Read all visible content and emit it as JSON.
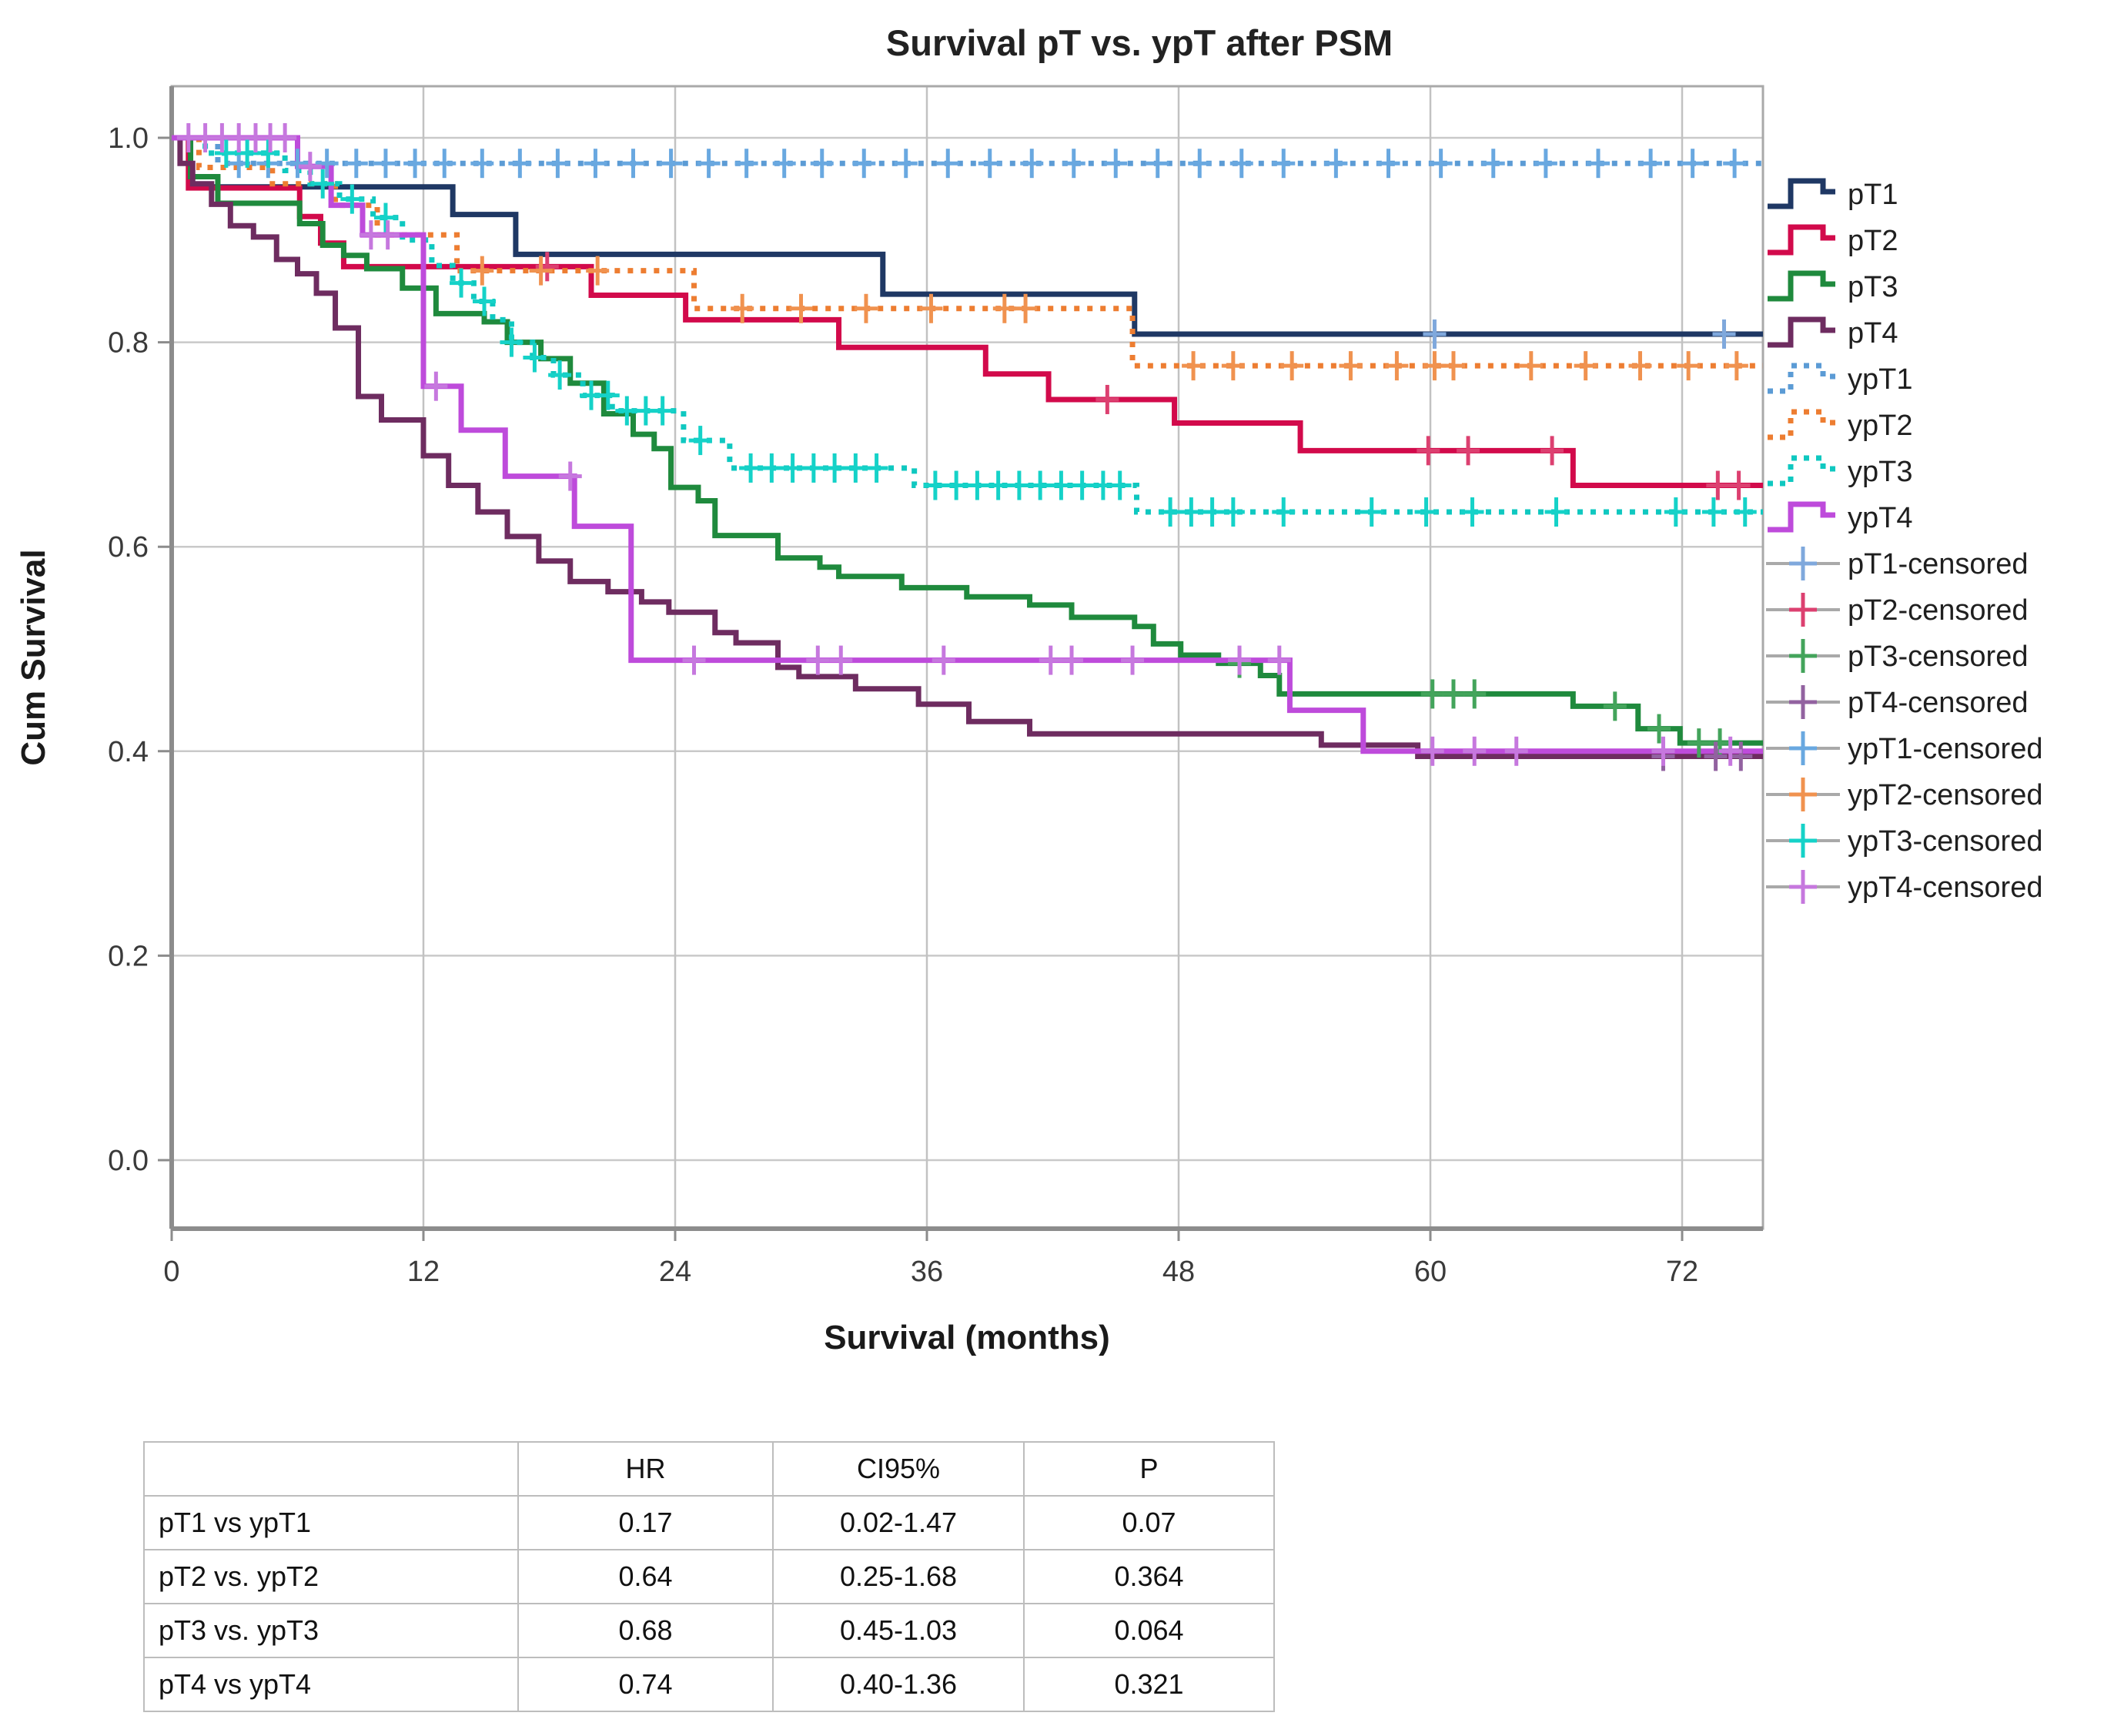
{
  "title": "Survival pT vs. ypT after PSM",
  "axes": {
    "y_label": "Cum Survival",
    "x_label": "Survival (months)",
    "y_tick_labels": [
      "1.0",
      "0.8",
      "0.6",
      "0.4",
      "0.2",
      "0.0"
    ],
    "x_tick_labels": [
      "0",
      "12",
      "24",
      "36",
      "48",
      "60",
      "72"
    ]
  },
  "chart_data": {
    "type": "line",
    "subtype": "kaplan-meier-step",
    "title": "Survival pT vs. ypT after PSM",
    "xlabel": "Survival (months)",
    "ylabel": "Cum Survival",
    "xlim": [
      0,
      75.8
    ],
    "ylim": [
      0.0,
      1.0
    ],
    "x_ticks": [
      0,
      12,
      24,
      36,
      48,
      60,
      72
    ],
    "y_ticks": [
      1.0,
      0.8,
      0.6,
      0.4,
      0.2,
      0.0
    ],
    "grid": true,
    "legend_position": "right",
    "series": [
      {
        "name": "pT1",
        "color": "#1F3864",
        "censor_color": "#7FA8DC",
        "style": "solid",
        "steps": [
          [
            0,
            1.0
          ],
          [
            0.9,
            0.952
          ],
          [
            13.4,
            0.925
          ],
          [
            16.4,
            0.886
          ],
          [
            33.9,
            0.847
          ],
          [
            45.9,
            0.808
          ]
        ],
        "censors": [
          60.2,
          74
        ]
      },
      {
        "name": "pT2",
        "color": "#D20A4B",
        "censor_color": "#DC4070",
        "style": "solid",
        "steps": [
          [
            0,
            1.0
          ],
          [
            0.8,
            0.951
          ],
          [
            6.1,
            0.923
          ],
          [
            7.1,
            0.897
          ],
          [
            8.2,
            0.874
          ],
          [
            17.9,
            0.874
          ],
          [
            20,
            0.846
          ],
          [
            24.5,
            0.822
          ],
          [
            31.8,
            0.795
          ],
          [
            38.8,
            0.769
          ],
          [
            41.8,
            0.744
          ],
          [
            47.8,
            0.721
          ],
          [
            53.8,
            0.694
          ],
          [
            66.8,
            0.66
          ]
        ],
        "censors": [
          17.9,
          44.6,
          59.9,
          61.8,
          65.8,
          73.7,
          74.7
        ]
      },
      {
        "name": "pT3",
        "color": "#1F8A3D",
        "censor_color": "#43A45B",
        "style": "solid",
        "steps": [
          [
            0,
            1.0
          ],
          [
            0.9,
            0.962
          ],
          [
            2.2,
            0.936
          ],
          [
            6.1,
            0.916
          ],
          [
            7.2,
            0.895
          ],
          [
            8.2,
            0.885
          ],
          [
            9.3,
            0.872
          ],
          [
            11,
            0.853
          ],
          [
            12.6,
            0.828
          ],
          [
            14.9,
            0.82
          ],
          [
            16,
            0.8
          ],
          [
            17.6,
            0.784
          ],
          [
            19,
            0.76
          ],
          [
            20.6,
            0.73
          ],
          [
            22,
            0.71
          ],
          [
            23,
            0.696
          ],
          [
            23.8,
            0.658
          ],
          [
            25.1,
            0.645
          ],
          [
            25.9,
            0.611
          ],
          [
            28.9,
            0.589
          ],
          [
            30.9,
            0.58
          ],
          [
            31.8,
            0.571
          ],
          [
            34.8,
            0.56
          ],
          [
            37.9,
            0.551
          ],
          [
            40.9,
            0.543
          ],
          [
            42.9,
            0.531
          ],
          [
            45.9,
            0.522
          ],
          [
            46.8,
            0.505
          ],
          [
            48.1,
            0.494
          ],
          [
            49.9,
            0.486
          ],
          [
            51.9,
            0.474
          ],
          [
            52.8,
            0.456
          ],
          [
            66.8,
            0.444
          ],
          [
            69.9,
            0.422
          ],
          [
            71.9,
            0.408
          ]
        ],
        "censors": [
          50.9,
          60.1,
          61.1,
          62.1,
          68.8,
          70.9,
          72.8,
          73.8
        ]
      },
      {
        "name": "pT4",
        "color": "#6E2C60",
        "censor_color": "#9262A0",
        "style": "solid",
        "steps": [
          [
            0,
            1.0
          ],
          [
            0.4,
            0.975
          ],
          [
            1,
            0.955
          ],
          [
            1.9,
            0.935
          ],
          [
            2.8,
            0.914
          ],
          [
            3.9,
            0.903
          ],
          [
            5,
            0.881
          ],
          [
            6,
            0.867
          ],
          [
            6.9,
            0.848
          ],
          [
            7.8,
            0.814
          ],
          [
            8.9,
            0.747
          ],
          [
            10,
            0.724
          ],
          [
            12,
            0.689
          ],
          [
            13.2,
            0.66
          ],
          [
            14.6,
            0.634
          ],
          [
            16,
            0.61
          ],
          [
            17.5,
            0.586
          ],
          [
            19,
            0.566
          ],
          [
            20.8,
            0.556
          ],
          [
            22.4,
            0.546
          ],
          [
            23.7,
            0.536
          ],
          [
            25.9,
            0.516
          ],
          [
            26.9,
            0.506
          ],
          [
            28.9,
            0.482
          ],
          [
            29.9,
            0.473
          ],
          [
            32.6,
            0.461
          ],
          [
            35.6,
            0.446
          ],
          [
            38,
            0.429
          ],
          [
            40.9,
            0.417
          ],
          [
            54.8,
            0.406
          ],
          [
            59.4,
            0.395
          ]
        ],
        "censors": [
          71.1,
          73.6,
          74.8
        ]
      },
      {
        "name": "ypT1",
        "color": "#5B9BD5",
        "censor_color": "#69A8E0",
        "style": "dotted",
        "steps": [
          [
            0,
            1.0
          ],
          [
            2.2,
            0.975
          ]
        ],
        "censors": [
          3.2,
          4.6,
          6,
          7.4,
          8.8,
          10.2,
          11.6,
          13,
          14.8,
          16.6,
          18.4,
          20.2,
          22,
          23.8,
          25.6,
          27.4,
          29.2,
          31,
          33,
          35,
          37,
          39,
          41,
          43,
          45,
          47,
          49,
          51,
          53,
          55.5,
          58,
          60.5,
          63,
          65.5,
          68,
          70.5,
          72.5,
          74.5
        ]
      },
      {
        "name": "ypT2",
        "color": "#ED7D31",
        "censor_color": "#F0924F",
        "style": "dotted",
        "steps": [
          [
            0,
            1.0
          ],
          [
            1.3,
            0.971
          ],
          [
            4.8,
            0.955
          ],
          [
            7.8,
            0.934
          ],
          [
            9.8,
            0.905
          ],
          [
            13.6,
            0.87
          ],
          [
            24.9,
            0.833
          ],
          [
            45.8,
            0.777
          ]
        ],
        "censors": [
          14.8,
          17.6,
          20.3,
          27.2,
          30,
          33.1,
          36.2,
          39.7,
          40.7,
          48.7,
          50.6,
          53.4,
          56.2,
          58.4,
          60.2,
          61.1,
          64.8,
          67.4,
          70,
          72.3,
          74.6
        ]
      },
      {
        "name": "ypT3",
        "color": "#0FC8C0",
        "censor_color": "#15D2C8",
        "style": "dotted",
        "steps": [
          [
            0,
            1.0
          ],
          [
            1.6,
            0.985
          ],
          [
            5.4,
            0.968
          ],
          [
            6.6,
            0.955
          ],
          [
            8,
            0.94
          ],
          [
            9.6,
            0.922
          ],
          [
            11,
            0.9
          ],
          [
            12.4,
            0.875
          ],
          [
            13.4,
            0.858
          ],
          [
            14.4,
            0.84
          ],
          [
            15.3,
            0.822
          ],
          [
            16.2,
            0.8
          ],
          [
            17.2,
            0.785
          ],
          [
            18.2,
            0.768
          ],
          [
            19.6,
            0.748
          ],
          [
            21,
            0.733
          ],
          [
            24.4,
            0.704
          ],
          [
            26.6,
            0.677
          ],
          [
            35.4,
            0.66
          ],
          [
            46,
            0.634
          ]
        ],
        "censors": [
          2.6,
          3.6,
          4.6,
          7.2,
          8.6,
          10.2,
          13.8,
          14.9,
          16.2,
          17.3,
          18.5,
          20,
          20.8,
          21.7,
          22.6,
          23.4,
          25.2,
          27.6,
          28.6,
          29.6,
          30.6,
          31.6,
          32.6,
          33.6,
          36.4,
          37.4,
          38.4,
          39.4,
          40.4,
          41.4,
          42.4,
          43.4,
          44.4,
          45.2,
          47.6,
          48.6,
          49.6,
          50.6,
          53,
          57.2,
          59.8,
          62,
          66,
          71.7,
          73.5,
          75
        ]
      },
      {
        "name": "ypT4",
        "color": "#BE4BDB",
        "censor_color": "#C678DE",
        "style": "solid",
        "steps": [
          [
            0,
            1.0
          ],
          [
            6,
            0.972
          ],
          [
            7.6,
            0.934
          ],
          [
            9.1,
            0.905
          ],
          [
            12,
            0.757
          ],
          [
            13.8,
            0.714
          ],
          [
            15.9,
            0.669
          ],
          [
            19.2,
            0.62
          ],
          [
            21.9,
            0.489
          ],
          [
            53.3,
            0.44
          ],
          [
            56.8,
            0.4
          ]
        ],
        "censors": [
          0.8,
          1.6,
          2.4,
          3.2,
          4,
          4.7,
          5.4,
          6.6,
          9.5,
          10.3,
          12.6,
          19,
          24.9,
          30.8,
          31.9,
          36.8,
          41.9,
          42.9,
          45.8,
          50.9,
          52.8,
          60.1,
          62.1,
          64.1,
          71.1,
          74.3
        ]
      }
    ]
  },
  "legend": {
    "curve_entries": [
      "pT1",
      "pT2",
      "pT3",
      "pT4",
      "ypT1",
      "ypT2",
      "ypT3",
      "ypT4"
    ],
    "censor_entries": [
      "pT1-censored",
      "pT2-censored",
      "pT3-censored",
      "pT4-censored",
      "ypT1-censored",
      "ypT2-censored",
      "ypT3-censored",
      "ypT4-censored"
    ]
  },
  "table": {
    "headers": [
      "",
      "HR",
      "CI95%",
      "P"
    ],
    "rows": [
      [
        "pT1 vs ypT1",
        "0.17",
        "0.02-1.47",
        "0.07"
      ],
      [
        "pT2 vs. ypT2",
        "0.64",
        "0.25-1.68",
        "0.364"
      ],
      [
        "pT3 vs. ypT3",
        "0.68",
        "0.45-1.03",
        "0.064"
      ],
      [
        "pT4 vs ypT4",
        "0.74",
        "0.40-1.36",
        "0.321"
      ]
    ]
  },
  "colors": {
    "grid": "#c9c9c9",
    "frame": "#a9a9a9",
    "axis": "#8c8c8c",
    "legend_censor_line": "#a9a9a9",
    "table_border": "#bdbdbd"
  }
}
